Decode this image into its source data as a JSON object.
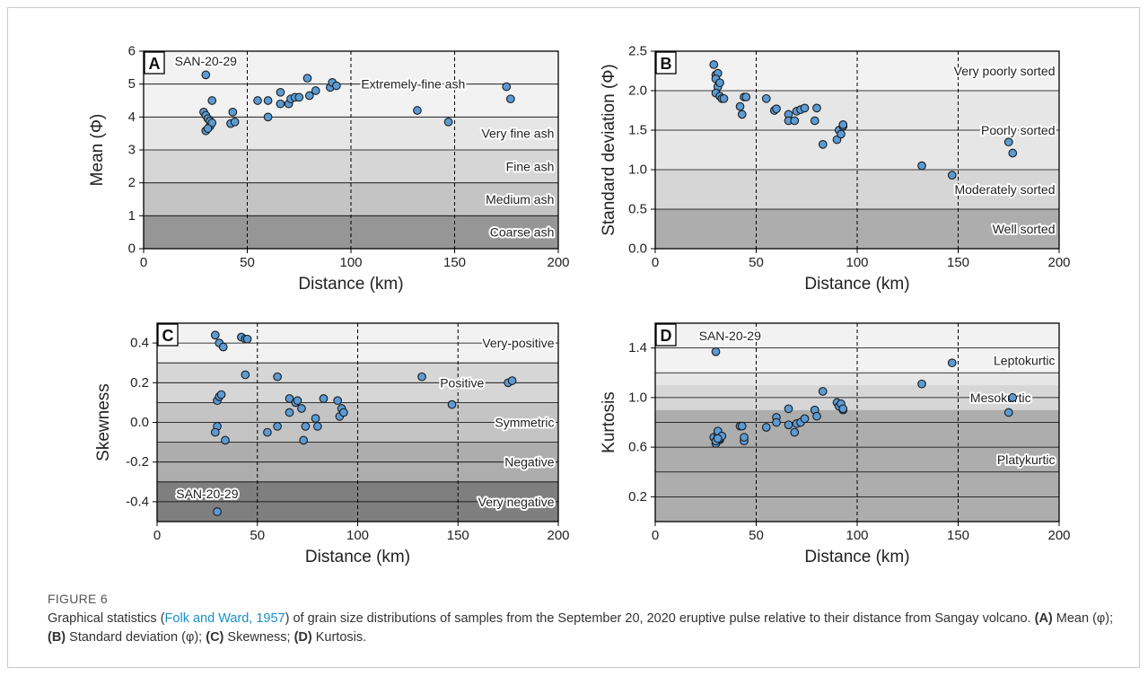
{
  "figure": {
    "label": "FIGURE 6",
    "caption": {
      "p1": "Graphical statistics (",
      "ref": "Folk and Ward, 1957",
      "p2": ") of grain size distributions of samples from the September 20, 2020 eruptive pulse relative to their distance from Sangay volcano. ",
      "a_lbl": "(A)",
      "a_txt": " Mean (φ); ",
      "b_lbl": "(B)",
      "b_txt": " Standard deviation (φ); ",
      "c_lbl": "(C)",
      "c_txt": " Skewness; ",
      "d_lbl": "(D)",
      "d_txt": " Kurtosis."
    }
  },
  "colors": {
    "point_fill": "#5b9bd5",
    "point_stroke": "#1a1a1a",
    "grid_line": "#000000",
    "band_shades": [
      "#f2f2f2",
      "#e6e6e6",
      "#d6d6d6",
      "#c4c4c4",
      "#adadad",
      "#969696",
      "#7f7f7f"
    ]
  },
  "chart_data": [
    {
      "id": "A",
      "type": "scatter",
      "panel_label": "A",
      "xlabel": "Distance (km)",
      "ylabel": "Mean (Φ)",
      "xlim": [
        0,
        200
      ],
      "ylim": [
        0,
        6
      ],
      "xticks": [
        0,
        50,
        100,
        150,
        200
      ],
      "xtick_labels": [
        "0",
        "50",
        "100",
        "150",
        "200"
      ],
      "yticks": [
        0,
        1,
        2,
        3,
        4,
        5,
        6
      ],
      "ytick_labels": [
        "0",
        "1",
        "2",
        "3",
        "4",
        "5",
        "6"
      ],
      "vlines": [
        50,
        100,
        150
      ],
      "bands": [
        {
          "from": 5,
          "to": 6,
          "shade": 0
        },
        {
          "from": 4,
          "to": 5,
          "shade": 0
        },
        {
          "from": 3,
          "to": 4,
          "shade": 1
        },
        {
          "from": 2,
          "to": 3,
          "shade": 2
        },
        {
          "from": 1,
          "to": 2,
          "shade": 3
        },
        {
          "from": 0,
          "to": 1,
          "shade": 5
        }
      ],
      "hlines": [
        1,
        2,
        3,
        4,
        5
      ],
      "class_labels": [
        {
          "text": "Extremely-fine ash",
          "x": 130,
          "y": 5.0
        },
        {
          "text": "Very fine ash",
          "x": 198,
          "y": 3.5
        },
        {
          "text": "Fine ash",
          "x": 198,
          "y": 2.5
        },
        {
          "text": "Medium ash",
          "x": 198,
          "y": 1.5
        },
        {
          "text": "Coarse ash",
          "x": 198,
          "y": 0.5
        }
      ],
      "annotations": [
        {
          "text": "SAN-20-29",
          "x": 30,
          "y": 5.7
        }
      ],
      "points": [
        [
          30,
          5.28
        ],
        [
          29,
          4.15
        ],
        [
          30,
          4.05
        ],
        [
          31,
          3.95
        ],
        [
          32,
          3.88
        ],
        [
          30,
          3.58
        ],
        [
          32,
          3.72
        ],
        [
          33,
          3.82
        ],
        [
          31,
          3.65
        ],
        [
          33,
          4.5
        ],
        [
          42,
          3.8
        ],
        [
          44,
          3.85
        ],
        [
          43,
          4.15
        ],
        [
          55,
          4.5
        ],
        [
          60,
          4.0
        ],
        [
          60,
          4.5
        ],
        [
          66,
          4.75
        ],
        [
          66,
          4.4
        ],
        [
          70,
          4.4
        ],
        [
          71,
          4.55
        ],
        [
          73,
          4.6
        ],
        [
          75,
          4.6
        ],
        [
          79,
          5.18
        ],
        [
          80,
          4.65
        ],
        [
          83,
          4.8
        ],
        [
          90,
          4.9
        ],
        [
          91,
          5.05
        ],
        [
          93,
          4.95
        ],
        [
          132,
          4.2
        ],
        [
          147,
          3.85
        ],
        [
          175,
          4.92
        ],
        [
          177,
          4.55
        ]
      ]
    },
    {
      "id": "B",
      "type": "scatter",
      "panel_label": "B",
      "xlabel": "Distance (km)",
      "ylabel": "Standard deviation (Φ)",
      "xlim": [
        0,
        200
      ],
      "ylim": [
        0,
        2.5
      ],
      "xticks": [
        0,
        50,
        100,
        150,
        200
      ],
      "xtick_labels": [
        "0",
        "50",
        "100",
        "150",
        "200"
      ],
      "yticks": [
        0,
        0.5,
        1.0,
        1.5,
        2.0,
        2.5
      ],
      "ytick_labels": [
        "0.0",
        "0.5",
        "1.0",
        "1.5",
        "2.0",
        "2.5"
      ],
      "vlines": [
        50,
        100,
        150
      ],
      "bands": [
        {
          "from": 2.0,
          "to": 2.5,
          "shade": 0
        },
        {
          "from": 1.0,
          "to": 2.0,
          "shade": 1
        },
        {
          "from": 0.5,
          "to": 1.0,
          "shade": 2
        },
        {
          "from": 0,
          "to": 0.5,
          "shade": 4
        }
      ],
      "hlines": [
        0.5,
        1.0,
        1.5,
        2.0
      ],
      "class_labels": [
        {
          "text": "Very poorly sorted",
          "x": 198,
          "y": 2.25
        },
        {
          "text": "Poorly sorted",
          "x": 198,
          "y": 1.5
        },
        {
          "text": "Moderately sorted",
          "x": 198,
          "y": 0.75
        },
        {
          "text": "Well sorted",
          "x": 198,
          "y": 0.25
        }
      ],
      "annotations": [],
      "points": [
        [
          29,
          2.33
        ],
        [
          30,
          2.2
        ],
        [
          31,
          2.22
        ],
        [
          30,
          2.15
        ],
        [
          31,
          2.05
        ],
        [
          32,
          2.1
        ],
        [
          30,
          1.97
        ],
        [
          32,
          1.93
        ],
        [
          33,
          1.9
        ],
        [
          34,
          1.9
        ],
        [
          42,
          1.8
        ],
        [
          43,
          1.7
        ],
        [
          44,
          1.92
        ],
        [
          45,
          1.92
        ],
        [
          55,
          1.9
        ],
        [
          59,
          1.75
        ],
        [
          60,
          1.77
        ],
        [
          66,
          1.7
        ],
        [
          66,
          1.62
        ],
        [
          69,
          1.62
        ],
        [
          70,
          1.74
        ],
        [
          72,
          1.76
        ],
        [
          74,
          1.78
        ],
        [
          79,
          1.62
        ],
        [
          80,
          1.78
        ],
        [
          83,
          1.32
        ],
        [
          90,
          1.38
        ],
        [
          91,
          1.5
        ],
        [
          92,
          1.45
        ],
        [
          93,
          1.55
        ],
        [
          93,
          1.57
        ],
        [
          132,
          1.05
        ],
        [
          147,
          0.93
        ],
        [
          175,
          1.35
        ],
        [
          177,
          1.21
        ]
      ]
    },
    {
      "id": "C",
      "type": "scatter",
      "panel_label": "C",
      "xlabel": "Distance (km)",
      "ylabel": "Skewness",
      "xlim": [
        0,
        200
      ],
      "ylim": [
        -0.5,
        0.5
      ],
      "xticks": [
        0,
        50,
        100,
        150,
        200
      ],
      "xtick_labels": [
        "0",
        "50",
        "100",
        "150",
        "200"
      ],
      "yticks": [
        -0.4,
        -0.2,
        0.0,
        0.2,
        0.4
      ],
      "ytick_labels": [
        "-0.4",
        "-0.2",
        "0.0",
        "0.2",
        "0.4"
      ],
      "vlines": [
        50,
        100,
        150
      ],
      "bands": [
        {
          "from": 0.3,
          "to": 0.5,
          "shade": 0
        },
        {
          "from": 0.1,
          "to": 0.3,
          "shade": 2
        },
        {
          "from": -0.1,
          "to": 0.1,
          "shade": 3
        },
        {
          "from": -0.3,
          "to": -0.1,
          "shade": 4
        },
        {
          "from": -0.5,
          "to": -0.3,
          "shade": 6
        }
      ],
      "hlines": [
        -0.4,
        -0.3,
        -0.2,
        -0.1,
        0.0,
        0.1,
        0.2,
        0.3,
        0.4
      ],
      "class_labels": [
        {
          "text": "Very-positive",
          "x": 198,
          "y": 0.4
        },
        {
          "text": "Positive",
          "x": 152,
          "y": 0.2
        },
        {
          "text": "Symmetric",
          "x": 198,
          "y": 0.0
        },
        {
          "text": "Negative",
          "x": 198,
          "y": -0.2
        },
        {
          "text": "Very negative",
          "x": 198,
          "y": -0.4
        }
      ],
      "annotations": [
        {
          "text": "SAN-20-29",
          "x": 25,
          "y": -0.36
        }
      ],
      "points": [
        [
          29,
          0.44
        ],
        [
          31,
          0.4
        ],
        [
          33,
          0.38
        ],
        [
          30,
          0.11
        ],
        [
          31,
          0.13
        ],
        [
          32,
          0.14
        ],
        [
          30,
          -0.02
        ],
        [
          29,
          -0.05
        ],
        [
          34,
          -0.09
        ],
        [
          30,
          -0.45
        ],
        [
          42,
          0.43
        ],
        [
          44,
          0.42
        ],
        [
          45,
          0.42
        ],
        [
          44,
          0.24
        ],
        [
          55,
          -0.05
        ],
        [
          60,
          0.23
        ],
        [
          60,
          -0.02
        ],
        [
          66,
          0.12
        ],
        [
          66,
          0.05
        ],
        [
          69,
          0.1
        ],
        [
          70,
          0.11
        ],
        [
          72,
          0.07
        ],
        [
          73,
          -0.09
        ],
        [
          74,
          -0.02
        ],
        [
          79,
          0.02
        ],
        [
          80,
          -0.02
        ],
        [
          83,
          0.12
        ],
        [
          90,
          0.11
        ],
        [
          91,
          0.03
        ],
        [
          92,
          0.07
        ],
        [
          93,
          0.05
        ],
        [
          132,
          0.23
        ],
        [
          147,
          0.09
        ],
        [
          175,
          0.2
        ],
        [
          177,
          0.21
        ]
      ]
    },
    {
      "id": "D",
      "type": "scatter",
      "panel_label": "D",
      "xlabel": "Distance (km)",
      "ylabel": "Kurtosis",
      "xlim": [
        0,
        200
      ],
      "ylim": [
        0,
        1.6
      ],
      "xticks": [
        0,
        50,
        100,
        150,
        200
      ],
      "xtick_labels": [
        "0",
        "50",
        "100",
        "150",
        "200"
      ],
      "yticks": [
        0.2,
        0.6,
        1.0,
        1.4
      ],
      "ytick_labels": [
        "0.2",
        "0.6",
        "1.0",
        "1.4"
      ],
      "vlines": [
        50,
        100,
        150
      ],
      "bands": [
        {
          "from": 1.2,
          "to": 1.6,
          "shade": 0
        },
        {
          "from": 1.1,
          "to": 1.2,
          "shade": 1
        },
        {
          "from": 0.9,
          "to": 1.1,
          "shade": 2
        },
        {
          "from": 0,
          "to": 0.9,
          "shade": 4
        }
      ],
      "hlines": [
        0.2,
        0.4,
        0.6,
        0.8,
        1.0,
        1.2,
        1.4
      ],
      "class_labels": [
        {
          "text": "Leptokurtic",
          "x": 198,
          "y": 1.3
        },
        {
          "text": "Mesokurtic",
          "x": 171,
          "y": 1.0
        },
        {
          "text": "Platykurtic",
          "x": 198,
          "y": 0.5
        }
      ],
      "annotations": [
        {
          "text": "SAN-20-29",
          "x": 37,
          "y": 1.5
        }
      ],
      "points": [
        [
          30,
          1.37
        ],
        [
          29,
          0.68
        ],
        [
          30,
          0.63
        ],
        [
          31,
          0.7
        ],
        [
          31,
          0.73
        ],
        [
          32,
          0.66
        ],
        [
          32,
          0.67
        ],
        [
          33,
          0.69
        ],
        [
          30,
          0.65
        ],
        [
          31,
          0.67
        ],
        [
          42,
          0.77
        ],
        [
          43,
          0.77
        ],
        [
          44,
          0.65
        ],
        [
          44,
          0.68
        ],
        [
          55,
          0.76
        ],
        [
          60,
          0.84
        ],
        [
          60,
          0.8
        ],
        [
          66,
          0.91
        ],
        [
          66,
          0.78
        ],
        [
          69,
          0.72
        ],
        [
          70,
          0.79
        ],
        [
          72,
          0.8
        ],
        [
          74,
          0.83
        ],
        [
          79,
          0.9
        ],
        [
          80,
          0.85
        ],
        [
          83,
          1.05
        ],
        [
          90,
          0.96
        ],
        [
          91,
          0.93
        ],
        [
          92,
          0.95
        ],
        [
          93,
          0.9
        ],
        [
          93,
          0.91
        ],
        [
          132,
          1.11
        ],
        [
          147,
          1.28
        ],
        [
          175,
          0.88
        ],
        [
          177,
          1.0
        ]
      ]
    }
  ]
}
